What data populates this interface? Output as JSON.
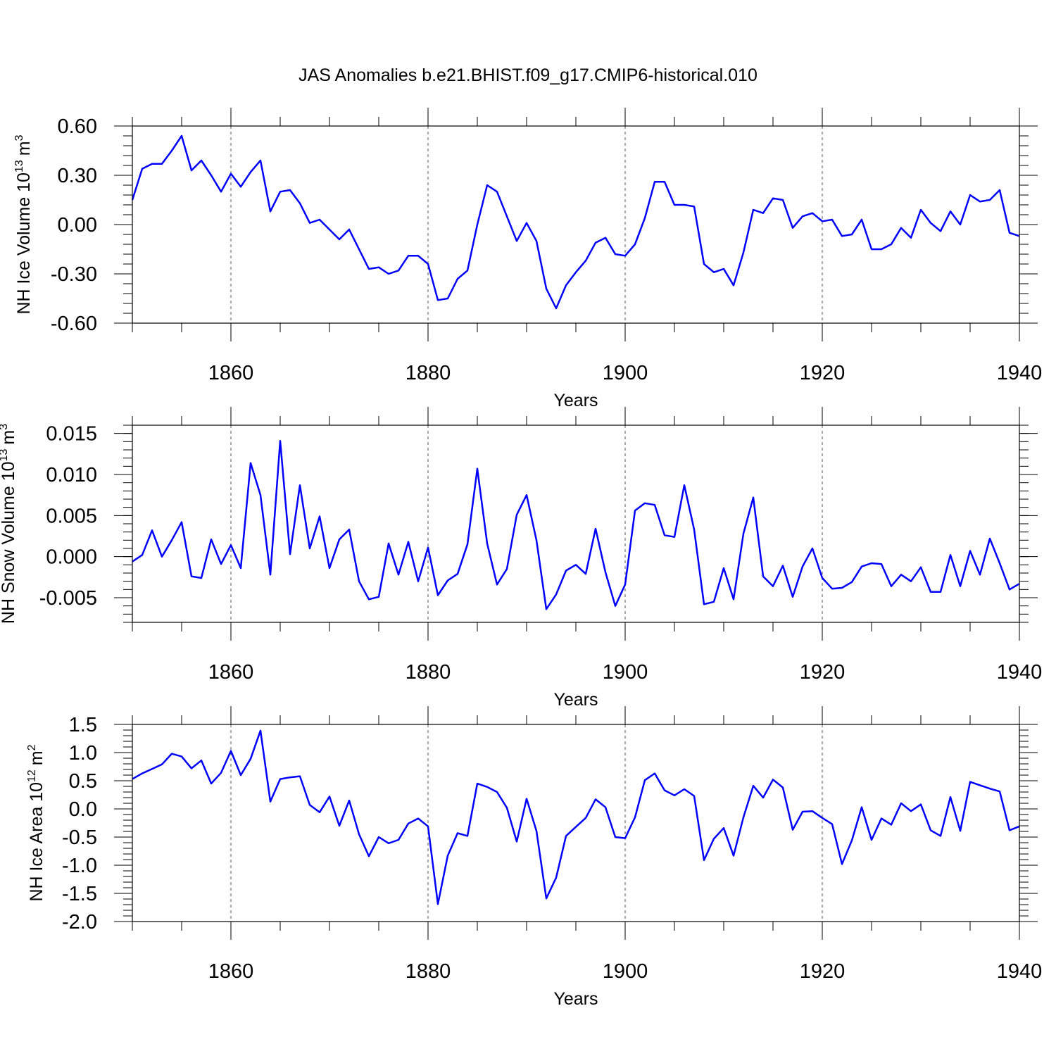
{
  "figure_title": "JAS Anomalies b.e21.BHIST.f09_g17.CMIP6-historical.010",
  "colors": {
    "line": "#0000ff",
    "axis": "#000000",
    "grid": "#555555"
  },
  "chart_data": [
    {
      "type": "line",
      "xlabel": "Years",
      "ylabel": "NH Ice Volume 10",
      "ylabel_exponent": "13",
      "ylabel_unit": "m",
      "ylabel_unit_exponent": "3",
      "xlim": [
        1850,
        1940
      ],
      "ylim": [
        -0.6,
        0.6
      ],
      "xticks": [
        1860,
        1880,
        1900,
        1920,
        1940
      ],
      "xtick_labels": [
        "1860",
        "1880",
        "1900",
        "1920",
        "1940"
      ],
      "yticks": [
        -0.6,
        -0.3,
        0.0,
        0.3,
        0.6
      ],
      "ytick_labels": [
        "-0.60",
        "-0.30",
        "0.00",
        "0.30",
        "0.60"
      ],
      "gridlines_x": [
        1860,
        1880,
        1900,
        1920
      ],
      "series": [
        {
          "name": "NH Ice Volume",
          "x": [
            1850,
            1851,
            1852,
            1853,
            1854,
            1855,
            1856,
            1857,
            1858,
            1859,
            1860,
            1861,
            1862,
            1863,
            1864,
            1865,
            1866,
            1867,
            1868,
            1869,
            1870,
            1871,
            1872,
            1873,
            1874,
            1875,
            1876,
            1877,
            1878,
            1879,
            1880,
            1881,
            1882,
            1883,
            1884,
            1885,
            1886,
            1887,
            1888,
            1889,
            1890,
            1891,
            1892,
            1893,
            1894,
            1895,
            1896,
            1897,
            1898,
            1899,
            1900,
            1901,
            1902,
            1903,
            1904,
            1905,
            1906,
            1907,
            1908,
            1909,
            1910,
            1911,
            1912,
            1913,
            1914,
            1915,
            1916,
            1917,
            1918,
            1919,
            1920,
            1921,
            1922,
            1923,
            1924,
            1925,
            1926,
            1927,
            1928,
            1929,
            1930,
            1931,
            1932,
            1933,
            1934,
            1935,
            1936,
            1937,
            1938,
            1939,
            1940
          ],
          "values": [
            0.15,
            0.34,
            0.37,
            0.37,
            0.45,
            0.54,
            0.33,
            0.39,
            0.3,
            0.2,
            0.31,
            0.23,
            0.32,
            0.39,
            0.08,
            0.2,
            0.21,
            0.13,
            0.01,
            0.03,
            -0.03,
            -0.09,
            -0.03,
            -0.15,
            -0.27,
            -0.26,
            -0.3,
            -0.28,
            -0.19,
            -0.19,
            -0.24,
            -0.46,
            -0.45,
            -0.33,
            -0.28,
            0.0,
            0.24,
            0.2,
            0.05,
            -0.1,
            0.01,
            -0.1,
            -0.39,
            -0.51,
            -0.37,
            -0.29,
            -0.22,
            -0.11,
            -0.08,
            -0.18,
            -0.19,
            -0.12,
            0.04,
            0.26,
            0.26,
            0.12,
            0.12,
            0.11,
            -0.24,
            -0.29,
            -0.27,
            -0.37,
            -0.17,
            0.09,
            0.07,
            0.16,
            0.15,
            -0.02,
            0.05,
            0.07,
            0.02,
            0.03,
            -0.07,
            -0.06,
            0.03,
            -0.15,
            -0.15,
            -0.12,
            -0.02,
            -0.08,
            0.09,
            0.01,
            -0.04,
            0.08,
            0.0,
            0.18,
            0.14,
            0.15,
            0.21,
            -0.05,
            -0.07
          ]
        }
      ]
    },
    {
      "type": "line",
      "xlabel": "Years",
      "ylabel": "NH Snow Volume 10",
      "ylabel_exponent": "13",
      "ylabel_unit": "m",
      "ylabel_unit_exponent": "3",
      "xlim": [
        1850,
        1940
      ],
      "ylim": [
        -0.008,
        0.016
      ],
      "xticks": [
        1860,
        1880,
        1900,
        1920,
        1940
      ],
      "xtick_labels": [
        "1860",
        "1880",
        "1900",
        "1920",
        "1940"
      ],
      "yticks": [
        -0.005,
        0.0,
        0.005,
        0.01,
        0.015
      ],
      "ytick_labels": [
        "-0.005",
        "0.000",
        "0.005",
        "0.010",
        "0.015"
      ],
      "gridlines_x": [
        1860,
        1880,
        1900,
        1920
      ],
      "series": [
        {
          "name": "NH Snow Volume",
          "x": [
            1850,
            1851,
            1852,
            1853,
            1854,
            1855,
            1856,
            1857,
            1858,
            1859,
            1860,
            1861,
            1862,
            1863,
            1864,
            1865,
            1866,
            1867,
            1868,
            1869,
            1870,
            1871,
            1872,
            1873,
            1874,
            1875,
            1876,
            1877,
            1878,
            1879,
            1880,
            1881,
            1882,
            1883,
            1884,
            1885,
            1886,
            1887,
            1888,
            1889,
            1890,
            1891,
            1892,
            1893,
            1894,
            1895,
            1896,
            1897,
            1898,
            1899,
            1900,
            1901,
            1902,
            1903,
            1904,
            1905,
            1906,
            1907,
            1908,
            1909,
            1910,
            1911,
            1912,
            1913,
            1914,
            1915,
            1916,
            1917,
            1918,
            1919,
            1920,
            1921,
            1922,
            1923,
            1924,
            1925,
            1926,
            1927,
            1928,
            1929,
            1930,
            1931,
            1932,
            1933,
            1934,
            1935,
            1936,
            1937,
            1938,
            1939,
            1940
          ],
          "values": [
            -0.0006,
            0.0002,
            0.0032,
            0.0,
            0.002,
            0.0042,
            -0.0024,
            -0.0026,
            0.0021,
            -0.0009,
            0.0014,
            -0.0014,
            0.0114,
            0.0075,
            -0.0022,
            0.0141,
            0.0003,
            0.0087,
            0.001,
            0.0049,
            -0.0014,
            0.0021,
            0.0033,
            -0.003,
            -0.0052,
            -0.0049,
            0.0016,
            -0.0022,
            0.0018,
            -0.003,
            0.0011,
            -0.0047,
            -0.0029,
            -0.0021,
            0.0015,
            0.0107,
            0.0016,
            -0.0034,
            -0.0015,
            0.0051,
            0.0075,
            0.002,
            -0.0064,
            -0.0046,
            -0.0017,
            -0.001,
            -0.0021,
            0.0034,
            -0.0019,
            -0.006,
            -0.0034,
            0.0056,
            0.0065,
            0.0063,
            0.0026,
            0.0024,
            0.0087,
            0.0033,
            -0.0058,
            -0.0055,
            -0.0014,
            -0.0052,
            0.0028,
            0.0072,
            -0.0024,
            -0.0036,
            -0.0011,
            -0.0049,
            -0.0012,
            0.001,
            -0.0026,
            -0.0039,
            -0.0038,
            -0.0031,
            -0.0012,
            -0.0008,
            -0.0009,
            -0.0036,
            -0.0022,
            -0.003,
            -0.0013,
            -0.0043,
            -0.0043,
            0.0002,
            -0.0036,
            0.0007,
            -0.0022,
            0.0022,
            -0.0008,
            -0.004,
            -0.0033
          ]
        }
      ]
    },
    {
      "type": "line",
      "xlabel": "Years",
      "ylabel": "NH Ice Area 10",
      "ylabel_exponent": "12",
      "ylabel_unit": "m",
      "ylabel_unit_exponent": "2",
      "xlim": [
        1850,
        1940
      ],
      "ylim": [
        -2.0,
        1.5
      ],
      "xticks": [
        1860,
        1880,
        1900,
        1920,
        1940
      ],
      "xtick_labels": [
        "1860",
        "1880",
        "1900",
        "1920",
        "1940"
      ],
      "yticks": [
        -2.0,
        -1.5,
        -1.0,
        -0.5,
        0.0,
        0.5,
        1.0,
        1.5
      ],
      "ytick_labels": [
        "-2.0",
        "-1.5",
        "-1.0",
        "-0.5",
        "0.0",
        "0.5",
        "1.0",
        "1.5"
      ],
      "gridlines_x": [
        1860,
        1880,
        1900,
        1920
      ],
      "series": [
        {
          "name": "NH Ice Area",
          "x": [
            1850,
            1851,
            1852,
            1853,
            1854,
            1855,
            1856,
            1857,
            1858,
            1859,
            1860,
            1861,
            1862,
            1863,
            1864,
            1865,
            1866,
            1867,
            1868,
            1869,
            1870,
            1871,
            1872,
            1873,
            1874,
            1875,
            1876,
            1877,
            1878,
            1879,
            1880,
            1881,
            1882,
            1883,
            1884,
            1885,
            1886,
            1887,
            1888,
            1889,
            1890,
            1891,
            1892,
            1893,
            1894,
            1895,
            1896,
            1897,
            1898,
            1899,
            1900,
            1901,
            1902,
            1903,
            1904,
            1905,
            1906,
            1907,
            1908,
            1909,
            1910,
            1911,
            1912,
            1913,
            1914,
            1915,
            1916,
            1917,
            1918,
            1919,
            1920,
            1921,
            1922,
            1923,
            1924,
            1925,
            1926,
            1927,
            1928,
            1929,
            1930,
            1931,
            1932,
            1933,
            1934,
            1935,
            1936,
            1937,
            1938,
            1939,
            1940
          ],
          "values": [
            0.53,
            0.63,
            0.71,
            0.79,
            0.98,
            0.93,
            0.72,
            0.86,
            0.45,
            0.64,
            1.03,
            0.6,
            0.89,
            1.39,
            0.13,
            0.53,
            0.56,
            0.58,
            0.07,
            -0.06,
            0.22,
            -0.3,
            0.15,
            -0.45,
            -0.84,
            -0.5,
            -0.61,
            -0.55,
            -0.26,
            -0.17,
            -0.31,
            -1.69,
            -0.83,
            -0.43,
            -0.48,
            0.45,
            0.39,
            0.3,
            0.02,
            -0.58,
            0.18,
            -0.39,
            -1.59,
            -1.22,
            -0.48,
            -0.32,
            -0.16,
            0.17,
            0.03,
            -0.5,
            -0.52,
            -0.15,
            0.51,
            0.63,
            0.33,
            0.24,
            0.35,
            0.23,
            -0.91,
            -0.53,
            -0.34,
            -0.83,
            -0.15,
            0.41,
            0.2,
            0.52,
            0.38,
            -0.37,
            -0.05,
            -0.04,
            -0.16,
            -0.27,
            -0.98,
            -0.56,
            0.03,
            -0.55,
            -0.17,
            -0.28,
            0.1,
            -0.04,
            0.08,
            -0.38,
            -0.48,
            0.21,
            -0.39,
            0.48,
            0.42,
            0.36,
            0.31,
            -0.38,
            -0.31
          ]
        }
      ]
    }
  ]
}
